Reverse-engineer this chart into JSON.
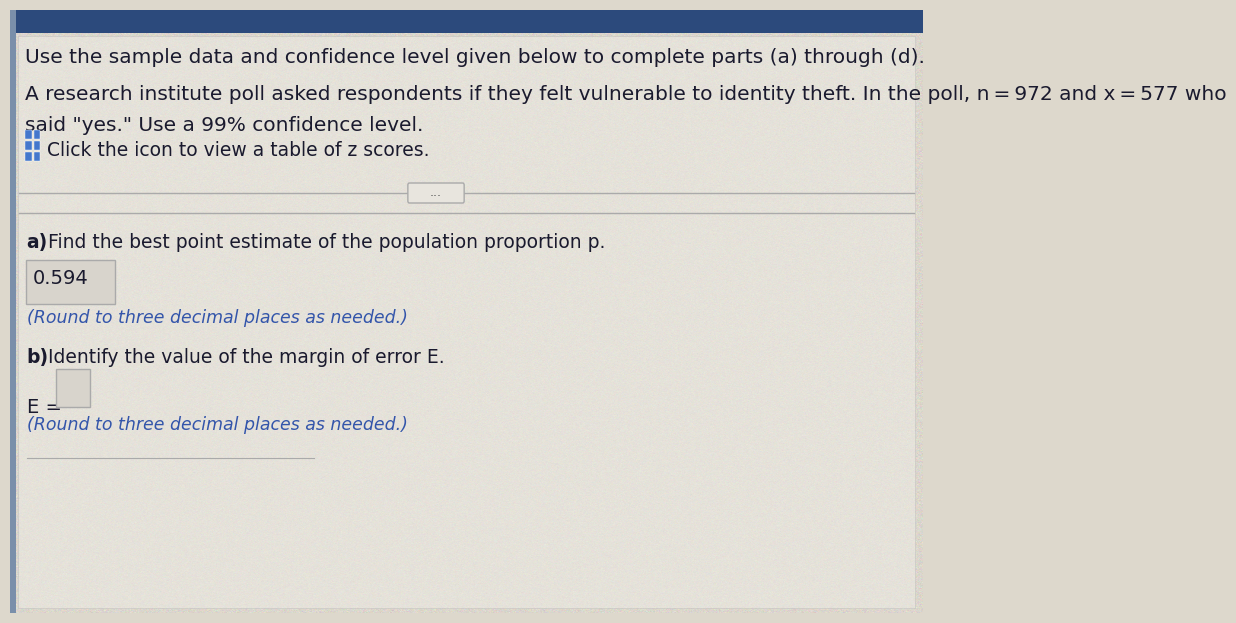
{
  "bg_top_color": "#3a5a8a",
  "bg_main_color": "#ddd8cc",
  "panel_light_color": "#e8e4d8",
  "text_color_dark": "#1a1a2e",
  "text_color_blue": "#2a3f6f",
  "text_color_italic_blue": "#3355aa",
  "answer_box_color": "#d4d0c8",
  "answer_box_border": "#aaaaaa",
  "separator_color": "#999999",
  "left_bar_color": "#8899bb",
  "title_line1": "Use the sample data and confidence level given below to complete parts (a) through (d).",
  "title_line2a": "A research institute poll asked respondents if they felt vulnerable to identity theft. In the poll, n = 972 and x = 577 who",
  "title_line2b": "said \"yes.\" Use a 99% confidence level.",
  "icon_label": "Click the icon to view a table of z scores.",
  "dots": "...",
  "part_a_label": "Find the best point estimate of the population proportion p.",
  "part_a_bold": "a)",
  "part_a_answer": "0.594",
  "part_a_note": "(Round to three decimal places as needed.)",
  "part_b_label": "Identify the value of the margin of error E.",
  "part_b_bold": "b)",
  "part_b_eq": "E =",
  "part_b_note": "(Round to three decimal places as needed.)",
  "font_size_title": 14.5,
  "font_size_body": 13.5,
  "font_size_note": 12.5,
  "font_size_answer": 14
}
